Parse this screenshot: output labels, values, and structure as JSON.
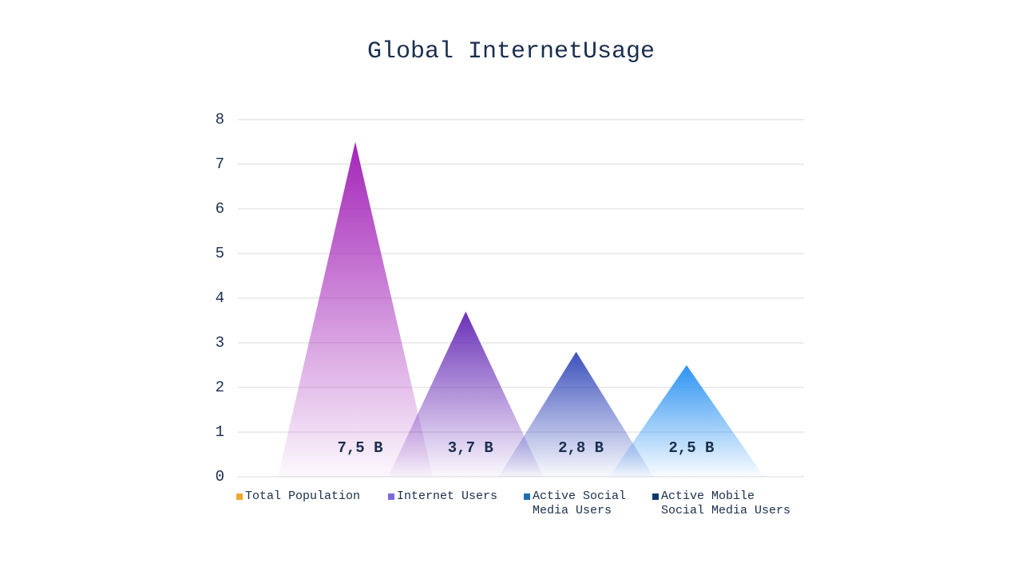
{
  "chart_data": {
    "type": "triangle",
    "title": "Global InternetUsage",
    "series": [
      {
        "name": "Total Population",
        "color": "#f0a830",
        "fill_color": "#a324b8",
        "values": [
          7.5
        ],
        "value_labels": [
          "7,5 B"
        ]
      },
      {
        "name": "Internet Users",
        "color": "#7b68e0",
        "fill_color": "#6a30b8",
        "values": [
          3.7
        ],
        "value_labels": [
          "3,7 B"
        ]
      },
      {
        "name": "Active Social Media Users",
        "color": "#1f6fb0",
        "fill_color": "#3c50bc",
        "values": [
          2.8
        ],
        "value_labels": [
          "2,8 B"
        ]
      },
      {
        "name": "Active Mobile Social Media Users",
        "color": "#0d3a6e",
        "fill_color": "#2e94f2",
        "values": [
          2.5
        ],
        "value_labels": [
          "2,5 B"
        ]
      }
    ],
    "ylim": [
      0,
      8
    ],
    "yticks": [
      0,
      1,
      2,
      3,
      4,
      5,
      6,
      7,
      8
    ],
    "grid": true
  }
}
